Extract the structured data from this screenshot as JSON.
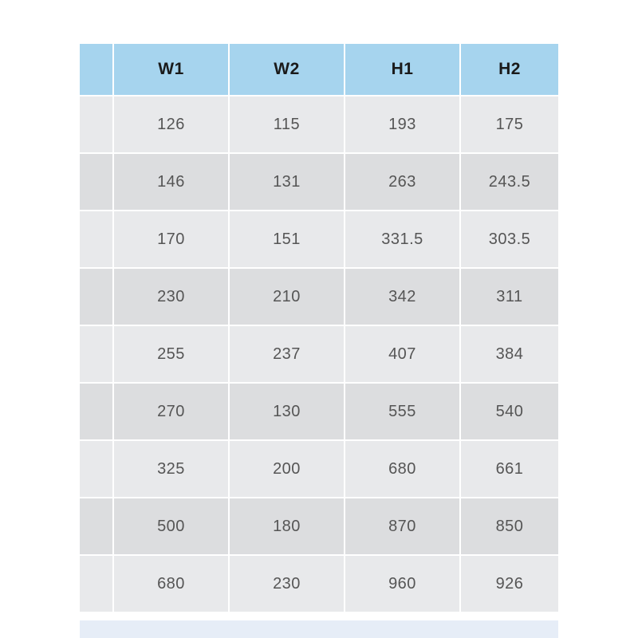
{
  "table": {
    "header_color": "#a6d4ee",
    "columns": [
      "",
      "W1",
      "W2",
      "H1",
      "H2"
    ],
    "rows": [
      [
        "",
        "126",
        "115",
        "193",
        "175"
      ],
      [
        "",
        "146",
        "131",
        "263",
        "243.5"
      ],
      [
        "",
        "170",
        "151",
        "331.5",
        "303.5"
      ],
      [
        "",
        "230",
        "210",
        "342",
        "311"
      ],
      [
        "",
        "255",
        "237",
        "407",
        "384"
      ],
      [
        "",
        "270",
        "130",
        "555",
        "540"
      ],
      [
        "",
        "325",
        "200",
        "680",
        "661"
      ],
      [
        "",
        "500",
        "180",
        "870",
        "850"
      ],
      [
        "",
        "680",
        "230",
        "960",
        "926"
      ]
    ]
  }
}
